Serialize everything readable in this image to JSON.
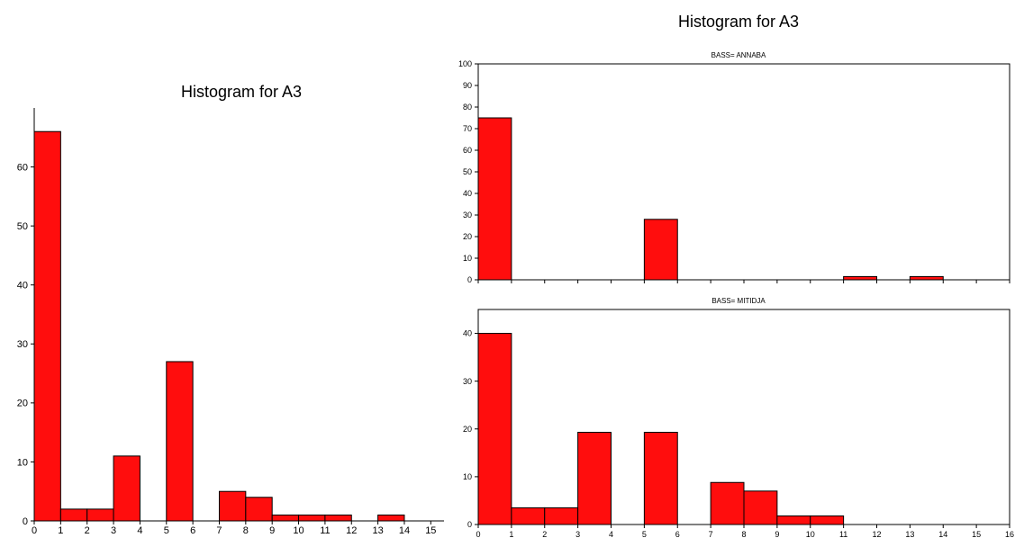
{
  "colors": {
    "bar": "#ff0d0d",
    "stroke": "#000000",
    "background": "#ffffff"
  },
  "chart_data": [
    {
      "type": "bar",
      "title": "Histogram for A3",
      "xlabel": "",
      "ylabel": "",
      "x_ticks": [
        0,
        1,
        2,
        3,
        4,
        5,
        6,
        7,
        8,
        9,
        10,
        11,
        12,
        13,
        14,
        15
      ],
      "y_ticks": [
        0,
        10,
        20,
        30,
        40,
        50,
        60
      ],
      "xlim": [
        0,
        15.5
      ],
      "ylim": [
        0,
        70
      ],
      "bins": [
        {
          "from": 0,
          "to": 1,
          "value": 66
        },
        {
          "from": 1,
          "to": 2,
          "value": 2
        },
        {
          "from": 2,
          "to": 3,
          "value": 2
        },
        {
          "from": 3,
          "to": 4,
          "value": 11
        },
        {
          "from": 5,
          "to": 6,
          "value": 27
        },
        {
          "from": 7,
          "to": 8,
          "value": 5
        },
        {
          "from": 8,
          "to": 9,
          "value": 4
        },
        {
          "from": 9,
          "to": 10,
          "value": 1
        },
        {
          "from": 10,
          "to": 11,
          "value": 1
        },
        {
          "from": 11,
          "to": 12,
          "value": 1
        },
        {
          "from": 13,
          "to": 14,
          "value": 1
        }
      ]
    },
    {
      "type": "bar",
      "title": "Histogram for A3",
      "panels": [
        {
          "subtitle": "BASS= ANNABA",
          "x_ticks": [
            0,
            1,
            2,
            3,
            4,
            5,
            6,
            7,
            8,
            9,
            10,
            11,
            12,
            13,
            14,
            15,
            16
          ],
          "y_ticks": [
            0,
            10,
            20,
            30,
            40,
            50,
            60,
            70,
            80,
            90,
            100
          ],
          "xlim": [
            0,
            16
          ],
          "ylim": [
            0,
            100
          ],
          "bins": [
            {
              "from": 0,
              "to": 1,
              "value": 75
            },
            {
              "from": 5,
              "to": 6,
              "value": 28
            },
            {
              "from": 11,
              "to": 12,
              "value": 1.5
            },
            {
              "from": 13,
              "to": 14,
              "value": 1.5
            }
          ]
        },
        {
          "subtitle": "BASS= MITIDJA",
          "x_ticks": [
            0,
            1,
            2,
            3,
            4,
            5,
            6,
            7,
            8,
            9,
            10,
            11,
            12,
            13,
            14,
            15,
            16
          ],
          "y_ticks": [
            0,
            10,
            20,
            30,
            40
          ],
          "xlim": [
            0,
            16
          ],
          "ylim": [
            0,
            45
          ],
          "bins": [
            {
              "from": 0,
              "to": 1,
              "value": 40
            },
            {
              "from": 1,
              "to": 2,
              "value": 3.5
            },
            {
              "from": 2,
              "to": 3,
              "value": 3.5
            },
            {
              "from": 3,
              "to": 4,
              "value": 19.3
            },
            {
              "from": 5,
              "to": 6,
              "value": 19.3
            },
            {
              "from": 7,
              "to": 8,
              "value": 8.8
            },
            {
              "from": 8,
              "to": 9,
              "value": 7
            },
            {
              "from": 9,
              "to": 10,
              "value": 1.8
            },
            {
              "from": 10,
              "to": 11,
              "value": 1.8
            }
          ]
        }
      ]
    }
  ]
}
